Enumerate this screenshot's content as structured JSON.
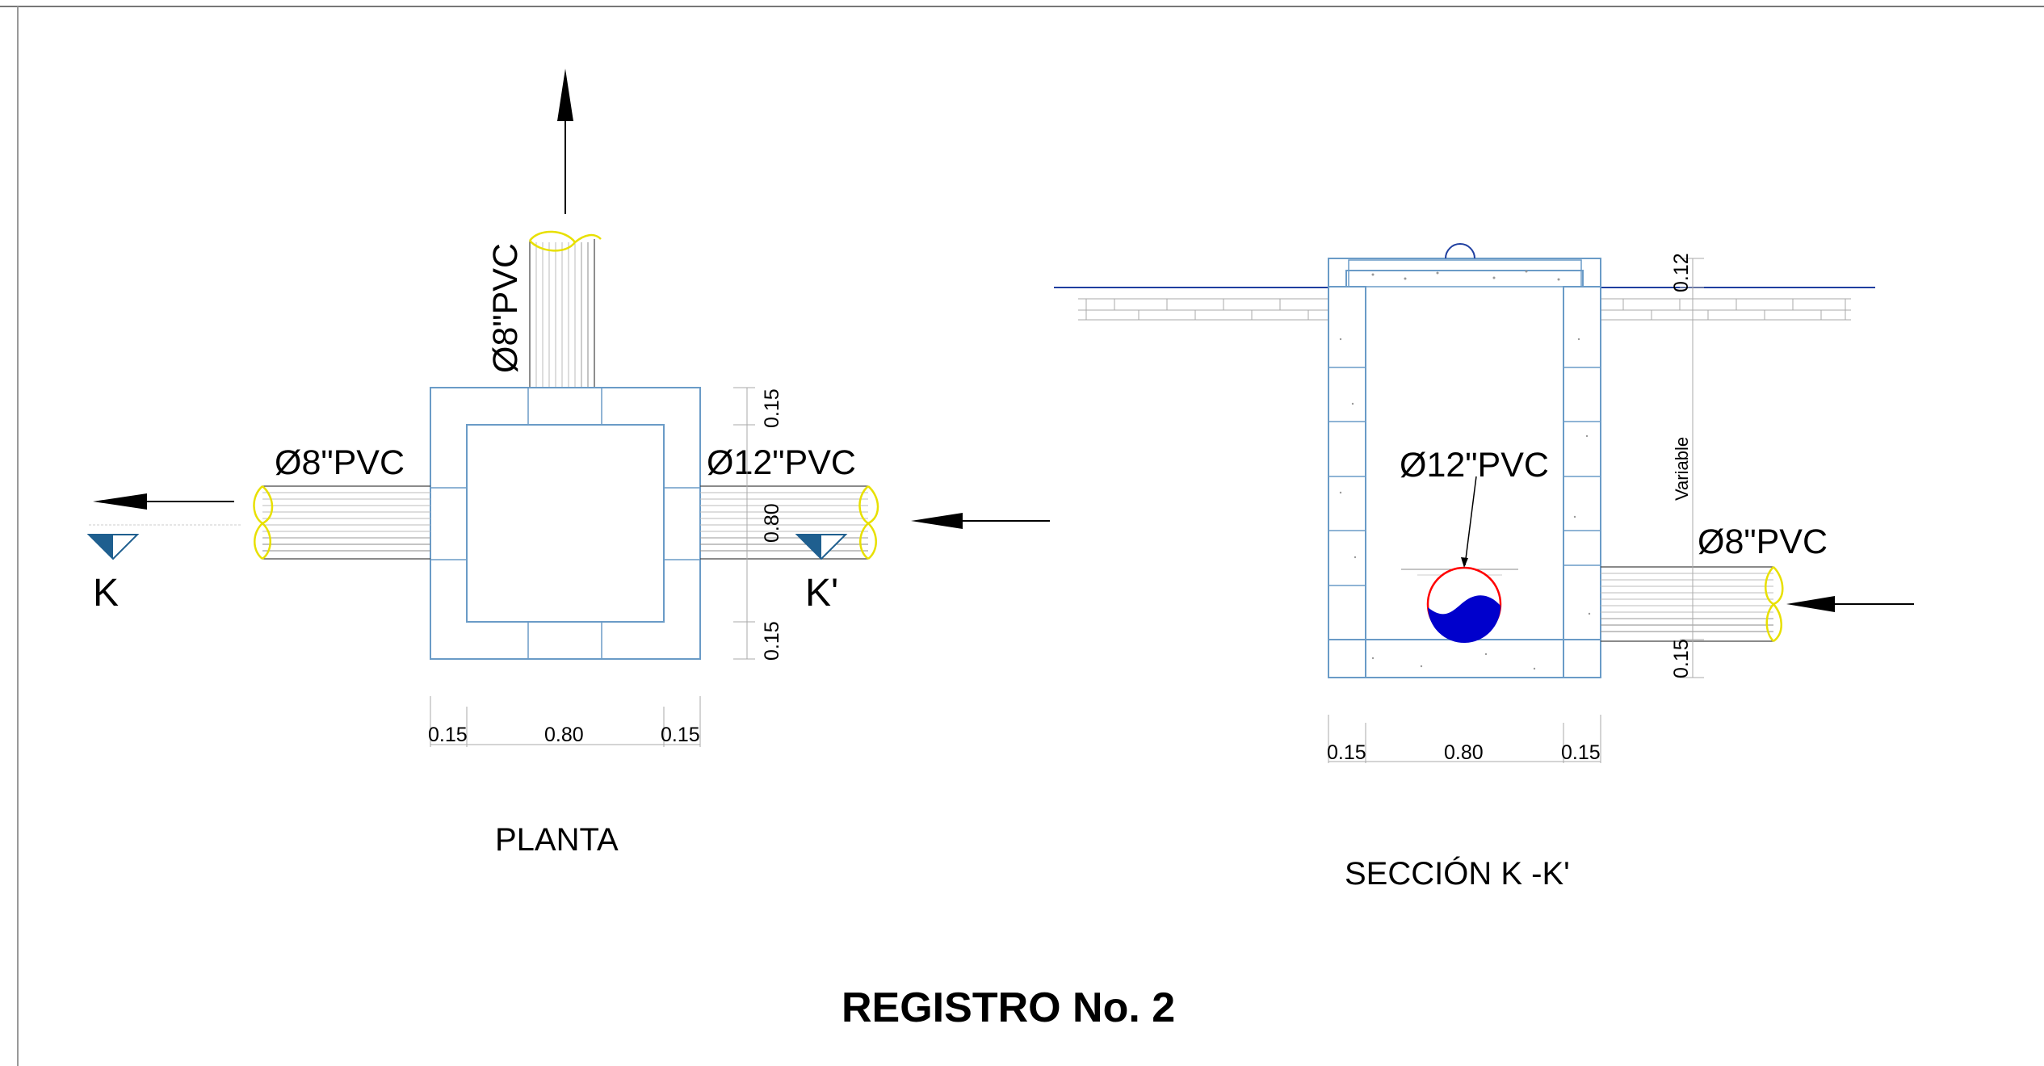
{
  "title": "REGISTRO No. 2",
  "planta": {
    "caption": "PLANTA",
    "pipe_top": "Ø8\"PVC",
    "pipe_left": "Ø8\"PVC",
    "pipe_right": "Ø12\"PVC",
    "cut_left": "K",
    "cut_right": "K'",
    "dims_bottom": [
      "0.15",
      "0.80",
      "0.15"
    ],
    "dims_side": [
      "0.15",
      "0.80",
      "0.15"
    ]
  },
  "seccion": {
    "caption": "SECCIÓN K -K'",
    "pipe_inner": "Ø12\"PVC",
    "pipe_right": "Ø8\"PVC",
    "dims_bottom": [
      "0.15",
      "0.80",
      "0.15"
    ],
    "dim_top": "0.12",
    "dim_variable": "Variable",
    "dim_bottom_slab": "0.15"
  },
  "colors": {
    "structure": "#6a9bc7",
    "pipe_end": "#e8e000",
    "water": "#0000cc",
    "pipe_ring": "#ff0000",
    "cut_marker": "#1f5f8f",
    "ground": "#1f3fa0"
  }
}
